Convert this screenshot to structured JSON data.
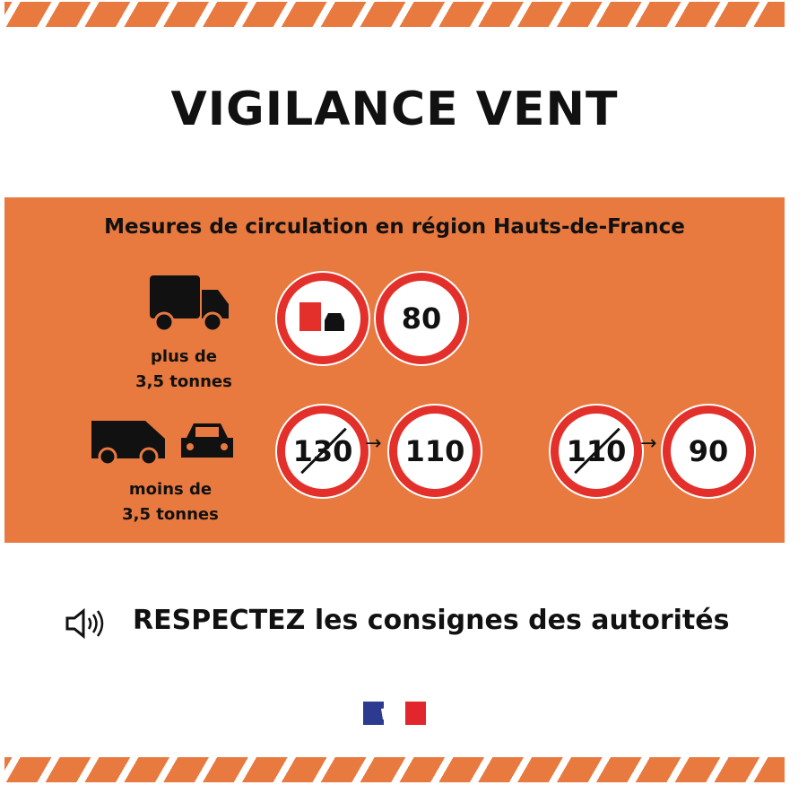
{
  "title": "VIGILANCE VENT",
  "subtitle": "Mesures de circulation en région Hauts-de-France",
  "heavy": {
    "label_line1": "plus de",
    "label_line2": "3,5 tonnes",
    "speed": "80"
  },
  "light": {
    "label_line1": "moins de",
    "label_line2": "3,5 tonnes",
    "changes": [
      {
        "from": "130",
        "to": "110"
      },
      {
        "from": "110",
        "to": "90"
      }
    ]
  },
  "arrow": "→",
  "footer": {
    "text": "RESPECTEZ les consignes des autorités",
    "icon": "speaker-icon"
  },
  "colors": {
    "orange": "#e8793f",
    "red": "#e3302a"
  }
}
